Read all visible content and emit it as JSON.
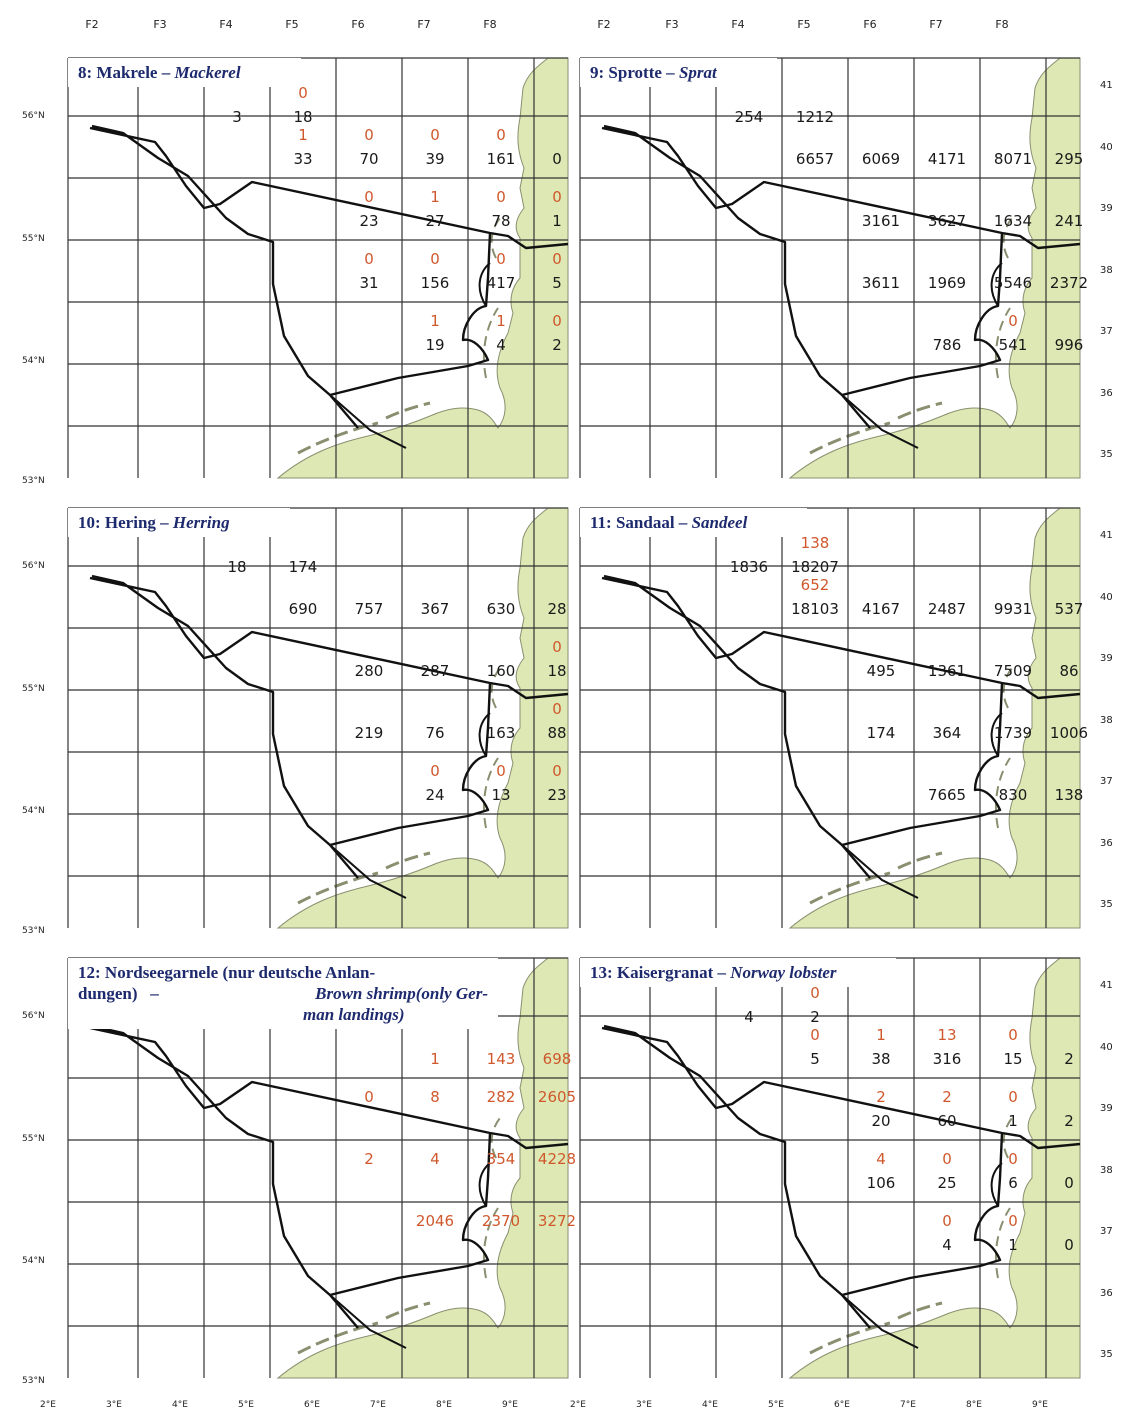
{
  "top_labels_left": [
    "F2",
    "F3",
    "F4",
    "F5",
    "F6",
    "F7",
    "F8"
  ],
  "top_labels_right": [
    "F2",
    "F3",
    "F4",
    "F5",
    "F6",
    "F7",
    "F8"
  ],
  "lat_labels": [
    "56°N",
    "55°N",
    "54°N",
    "53°N"
  ],
  "right_labels": [
    "41",
    "40",
    "39",
    "38",
    "37",
    "36",
    "35"
  ],
  "lon_labels_left": [
    "2°E",
    "3°E",
    "4°E",
    "5°E",
    "6°E",
    "7°E",
    "8°E",
    "9°E"
  ],
  "lon_labels_right": [
    "2°E",
    "3°E",
    "4°E",
    "5°E",
    "6°E",
    "7°E",
    "8°E",
    "9°E"
  ],
  "colors": {
    "land": "#dde8b4",
    "coast": "#8a8f70",
    "grid": "#333333",
    "boundary": "#111111",
    "title": "#1e2a6e",
    "black_value": "#1a1a1a",
    "red_value": "#d0582c"
  },
  "panels": [
    {
      "id": "8",
      "name_de": "8: Makrele – ",
      "name_en": "Mackerel",
      "values": [
        {
          "t": "0",
          "c": "red",
          "col": 3,
          "row": 1,
          "line": 0
        },
        {
          "t": "3",
          "c": "black",
          "col": 2,
          "row": 1,
          "line": 1
        },
        {
          "t": "18",
          "c": "black",
          "col": 3,
          "row": 1,
          "line": 1
        },
        {
          "t": "1",
          "c": "red",
          "col": 3,
          "row": 2,
          "line": 0
        },
        {
          "t": "0",
          "c": "red",
          "col": 4,
          "row": 2,
          "line": 0
        },
        {
          "t": "0",
          "c": "red",
          "col": 5,
          "row": 2,
          "line": 0
        },
        {
          "t": "0",
          "c": "red",
          "col": 6,
          "row": 2,
          "line": 0
        },
        {
          "t": "33",
          "c": "black",
          "col": 3,
          "row": 2,
          "line": 1
        },
        {
          "t": "70",
          "c": "black",
          "col": 4,
          "row": 2,
          "line": 1
        },
        {
          "t": "39",
          "c": "black",
          "col": 5,
          "row": 2,
          "line": 1
        },
        {
          "t": "161",
          "c": "black",
          "col": 6,
          "row": 2,
          "line": 1
        },
        {
          "t": "0",
          "c": "black",
          "col": 7,
          "row": 2,
          "line": 1
        },
        {
          "t": "0",
          "c": "red",
          "col": 4,
          "row": 3,
          "line": 0
        },
        {
          "t": "1",
          "c": "red",
          "col": 5,
          "row": 3,
          "line": 0
        },
        {
          "t": "0",
          "c": "red",
          "col": 6,
          "row": 3,
          "line": 0
        },
        {
          "t": "0",
          "c": "red",
          "col": 7,
          "row": 3,
          "line": 0
        },
        {
          "t": "23",
          "c": "black",
          "col": 4,
          "row": 3,
          "line": 1
        },
        {
          "t": "27",
          "c": "black",
          "col": 5,
          "row": 3,
          "line": 1
        },
        {
          "t": "78",
          "c": "black",
          "col": 6,
          "row": 3,
          "line": 1
        },
        {
          "t": "1",
          "c": "black",
          "col": 7,
          "row": 3,
          "line": 1
        },
        {
          "t": "0",
          "c": "red",
          "col": 4,
          "row": 4,
          "line": 0
        },
        {
          "t": "0",
          "c": "red",
          "col": 5,
          "row": 4,
          "line": 0
        },
        {
          "t": "0",
          "c": "red",
          "col": 6,
          "row": 4,
          "line": 0
        },
        {
          "t": "0",
          "c": "red",
          "col": 7,
          "row": 4,
          "line": 0
        },
        {
          "t": "31",
          "c": "black",
          "col": 4,
          "row": 4,
          "line": 1
        },
        {
          "t": "156",
          "c": "black",
          "col": 5,
          "row": 4,
          "line": 1
        },
        {
          "t": "417",
          "c": "black",
          "col": 6,
          "row": 4,
          "line": 1
        },
        {
          "t": "5",
          "c": "black",
          "col": 7,
          "row": 4,
          "line": 1
        },
        {
          "t": "1",
          "c": "red",
          "col": 5,
          "row": 5,
          "line": 0
        },
        {
          "t": "1",
          "c": "red",
          "col": 6,
          "row": 5,
          "line": 0
        },
        {
          "t": "0",
          "c": "red",
          "col": 7,
          "row": 5,
          "line": 0
        },
        {
          "t": "19",
          "c": "black",
          "col": 5,
          "row": 5,
          "line": 1
        },
        {
          "t": "4",
          "c": "black",
          "col": 6,
          "row": 5,
          "line": 1
        },
        {
          "t": "2",
          "c": "black",
          "col": 7,
          "row": 5,
          "line": 1
        }
      ]
    },
    {
      "id": "9",
      "name_de": "9: Sprotte – ",
      "name_en": "Sprat",
      "values": [
        {
          "t": "254",
          "c": "black",
          "col": 2,
          "row": 1,
          "line": 1
        },
        {
          "t": "1212",
          "c": "black",
          "col": 3,
          "row": 1,
          "line": 1
        },
        {
          "t": "6657",
          "c": "black",
          "col": 3,
          "row": 2,
          "line": 1
        },
        {
          "t": "6069",
          "c": "black",
          "col": 4,
          "row": 2,
          "line": 1
        },
        {
          "t": "4171",
          "c": "black",
          "col": 5,
          "row": 2,
          "line": 1
        },
        {
          "t": "8071",
          "c": "black",
          "col": 6,
          "row": 2,
          "line": 1
        },
        {
          "t": "295",
          "c": "black",
          "col": 7,
          "row": 2,
          "line": 1
        },
        {
          "t": "3161",
          "c": "black",
          "col": 4,
          "row": 3,
          "line": 1
        },
        {
          "t": "3627",
          "c": "black",
          "col": 5,
          "row": 3,
          "line": 1
        },
        {
          "t": "1634",
          "c": "black",
          "col": 6,
          "row": 3,
          "line": 1
        },
        {
          "t": "241",
          "c": "black",
          "col": 7,
          "row": 3,
          "line": 1
        },
        {
          "t": "3611",
          "c": "black",
          "col": 4,
          "row": 4,
          "line": 1
        },
        {
          "t": "1969",
          "c": "black",
          "col": 5,
          "row": 4,
          "line": 1
        },
        {
          "t": "5546",
          "c": "black",
          "col": 6,
          "row": 4,
          "line": 1
        },
        {
          "t": "2372",
          "c": "black",
          "col": 7,
          "row": 4,
          "line": 1
        },
        {
          "t": "0",
          "c": "red",
          "col": 6,
          "row": 5,
          "line": 0
        },
        {
          "t": "786",
          "c": "black",
          "col": 5,
          "row": 5,
          "line": 1
        },
        {
          "t": "541",
          "c": "black",
          "col": 6,
          "row": 5,
          "line": 1
        },
        {
          "t": "996",
          "c": "black",
          "col": 7,
          "row": 5,
          "line": 1
        }
      ]
    },
    {
      "id": "10",
      "name_de": "10: Hering – ",
      "name_en": "Herring",
      "values": [
        {
          "t": "18",
          "c": "black",
          "col": 2,
          "row": 1,
          "line": 1
        },
        {
          "t": "174",
          "c": "black",
          "col": 3,
          "row": 1,
          "line": 1
        },
        {
          "t": "690",
          "c": "black",
          "col": 3,
          "row": 2,
          "line": 1
        },
        {
          "t": "757",
          "c": "black",
          "col": 4,
          "row": 2,
          "line": 1
        },
        {
          "t": "367",
          "c": "black",
          "col": 5,
          "row": 2,
          "line": 1
        },
        {
          "t": "630",
          "c": "black",
          "col": 6,
          "row": 2,
          "line": 1
        },
        {
          "t": "28",
          "c": "black",
          "col": 7,
          "row": 2,
          "line": 1
        },
        {
          "t": "0",
          "c": "red",
          "col": 7,
          "row": 3,
          "line": 0
        },
        {
          "t": "280",
          "c": "black",
          "col": 4,
          "row": 3,
          "line": 1
        },
        {
          "t": "287",
          "c": "black",
          "col": 5,
          "row": 3,
          "line": 1
        },
        {
          "t": "160",
          "c": "black",
          "col": 6,
          "row": 3,
          "line": 1
        },
        {
          "t": "18",
          "c": "black",
          "col": 7,
          "row": 3,
          "line": 1
        },
        {
          "t": "0",
          "c": "red",
          "col": 7,
          "row": 4,
          "line": 0
        },
        {
          "t": "219",
          "c": "black",
          "col": 4,
          "row": 4,
          "line": 1
        },
        {
          "t": "76",
          "c": "black",
          "col": 5,
          "row": 4,
          "line": 1
        },
        {
          "t": "163",
          "c": "black",
          "col": 6,
          "row": 4,
          "line": 1
        },
        {
          "t": "88",
          "c": "black",
          "col": 7,
          "row": 4,
          "line": 1
        },
        {
          "t": "0",
          "c": "red",
          "col": 5,
          "row": 5,
          "line": 0
        },
        {
          "t": "0",
          "c": "red",
          "col": 6,
          "row": 5,
          "line": 0
        },
        {
          "t": "0",
          "c": "red",
          "col": 7,
          "row": 5,
          "line": 0
        },
        {
          "t": "24",
          "c": "black",
          "col": 5,
          "row": 5,
          "line": 1
        },
        {
          "t": "13",
          "c": "black",
          "col": 6,
          "row": 5,
          "line": 1
        },
        {
          "t": "23",
          "c": "black",
          "col": 7,
          "row": 5,
          "line": 1
        }
      ]
    },
    {
      "id": "11",
      "name_de": "11: Sandaal – ",
      "name_en": "Sandeel",
      "values": [
        {
          "t": "138",
          "c": "red",
          "col": 3,
          "row": 1,
          "line": 0
        },
        {
          "t": "1836",
          "c": "black",
          "col": 2,
          "row": 1,
          "line": 1
        },
        {
          "t": "18207",
          "c": "black",
          "col": 3,
          "row": 1,
          "line": 1
        },
        {
          "t": "652",
          "c": "red",
          "col": 3,
          "row": 2,
          "line": 0
        },
        {
          "t": "18103",
          "c": "black",
          "col": 3,
          "row": 2,
          "line": 1
        },
        {
          "t": "4167",
          "c": "black",
          "col": 4,
          "row": 2,
          "line": 1
        },
        {
          "t": "2487",
          "c": "black",
          "col": 5,
          "row": 2,
          "line": 1
        },
        {
          "t": "9931",
          "c": "black",
          "col": 6,
          "row": 2,
          "line": 1
        },
        {
          "t": "537",
          "c": "black",
          "col": 7,
          "row": 2,
          "line": 1
        },
        {
          "t": "495",
          "c": "black",
          "col": 4,
          "row": 3,
          "line": 1
        },
        {
          "t": "1361",
          "c": "black",
          "col": 5,
          "row": 3,
          "line": 1
        },
        {
          "t": "7509",
          "c": "black",
          "col": 6,
          "row": 3,
          "line": 1
        },
        {
          "t": "86",
          "c": "black",
          "col": 7,
          "row": 3,
          "line": 1
        },
        {
          "t": "174",
          "c": "black",
          "col": 4,
          "row": 4,
          "line": 1
        },
        {
          "t": "364",
          "c": "black",
          "col": 5,
          "row": 4,
          "line": 1
        },
        {
          "t": "1739",
          "c": "black",
          "col": 6,
          "row": 4,
          "line": 1
        },
        {
          "t": "1006",
          "c": "black",
          "col": 7,
          "row": 4,
          "line": 1
        },
        {
          "t": "7665",
          "c": "black",
          "col": 5,
          "row": 5,
          "line": 1
        },
        {
          "t": "830",
          "c": "black",
          "col": 6,
          "row": 5,
          "line": 1
        },
        {
          "t": "138",
          "c": "black",
          "col": 7,
          "row": 5,
          "line": 1
        }
      ]
    },
    {
      "id": "12",
      "name_de": "12: Nordseegarnele (nur deutsche Anlan- dungen) – ",
      "name_en": "Brown shrimp(only German landings)",
      "title_line1": "12: Nordseegarnele (nur deutsche Anlan-",
      "title_line2_de": "dungen)   –   ",
      "title_line2_en": "Brown shrimp(only Ger-",
      "title_line3_en": "man landings)",
      "values": [
        {
          "t": "1",
          "c": "red",
          "col": 5,
          "row": 2,
          "line": 1
        },
        {
          "t": "143",
          "c": "red",
          "col": 6,
          "row": 2,
          "line": 1
        },
        {
          "t": "698",
          "c": "red",
          "col": 7,
          "row": 2,
          "line": 1
        },
        {
          "t": "0",
          "c": "red",
          "col": 4,
          "row": 3,
          "line": 0
        },
        {
          "t": "8",
          "c": "red",
          "col": 5,
          "row": 3,
          "line": 0
        },
        {
          "t": "282",
          "c": "red",
          "col": 6,
          "row": 3,
          "line": 0
        },
        {
          "t": "2605",
          "c": "red",
          "col": 7,
          "row": 3,
          "line": 0
        },
        {
          "t": "2",
          "c": "red",
          "col": 4,
          "row": 4,
          "line": 0
        },
        {
          "t": "4",
          "c": "red",
          "col": 5,
          "row": 4,
          "line": 0
        },
        {
          "t": "354",
          "c": "red",
          "col": 6,
          "row": 4,
          "line": 0
        },
        {
          "t": "4228",
          "c": "red",
          "col": 7,
          "row": 4,
          "line": 0
        },
        {
          "t": "2046",
          "c": "red",
          "col": 5,
          "row": 5,
          "line": 0
        },
        {
          "t": "2370",
          "c": "red",
          "col": 6,
          "row": 5,
          "line": 0
        },
        {
          "t": "3272",
          "c": "red",
          "col": 7,
          "row": 5,
          "line": 0
        }
      ]
    },
    {
      "id": "13",
      "name_de": "13: Kaisergranat – ",
      "name_en": "Norway lobster",
      "values": [
        {
          "t": "0",
          "c": "red",
          "col": 3,
          "row": 1,
          "line": 0
        },
        {
          "t": "4",
          "c": "black",
          "col": 2,
          "row": 1,
          "line": 1
        },
        {
          "t": "2",
          "c": "black",
          "col": 3,
          "row": 1,
          "line": 1
        },
        {
          "t": "0",
          "c": "red",
          "col": 3,
          "row": 2,
          "line": 0
        },
        {
          "t": "1",
          "c": "red",
          "col": 4,
          "row": 2,
          "line": 0
        },
        {
          "t": "13",
          "c": "red",
          "col": 5,
          "row": 2,
          "line": 0
        },
        {
          "t": "0",
          "c": "red",
          "col": 6,
          "row": 2,
          "line": 0
        },
        {
          "t": "5",
          "c": "black",
          "col": 3,
          "row": 2,
          "line": 1
        },
        {
          "t": "38",
          "c": "black",
          "col": 4,
          "row": 2,
          "line": 1
        },
        {
          "t": "316",
          "c": "black",
          "col": 5,
          "row": 2,
          "line": 1
        },
        {
          "t": "15",
          "c": "black",
          "col": 6,
          "row": 2,
          "line": 1
        },
        {
          "t": "2",
          "c": "black",
          "col": 7,
          "row": 2,
          "line": 1
        },
        {
          "t": "2",
          "c": "red",
          "col": 4,
          "row": 3,
          "line": 0
        },
        {
          "t": "2",
          "c": "red",
          "col": 5,
          "row": 3,
          "line": 0
        },
        {
          "t": "0",
          "c": "red",
          "col": 6,
          "row": 3,
          "line": 0
        },
        {
          "t": "20",
          "c": "black",
          "col": 4,
          "row": 3,
          "line": 1
        },
        {
          "t": "60",
          "c": "black",
          "col": 5,
          "row": 3,
          "line": 1
        },
        {
          "t": "1",
          "c": "black",
          "col": 6,
          "row": 3,
          "line": 1
        },
        {
          "t": "2",
          "c": "black",
          "col": 7,
          "row": 3,
          "line": 1
        },
        {
          "t": "4",
          "c": "red",
          "col": 4,
          "row": 4,
          "line": 0
        },
        {
          "t": "0",
          "c": "red",
          "col": 5,
          "row": 4,
          "line": 0
        },
        {
          "t": "0",
          "c": "red",
          "col": 6,
          "row": 4,
          "line": 0
        },
        {
          "t": "106",
          "c": "black",
          "col": 4,
          "row": 4,
          "line": 1
        },
        {
          "t": "25",
          "c": "black",
          "col": 5,
          "row": 4,
          "line": 1
        },
        {
          "t": "6",
          "c": "black",
          "col": 6,
          "row": 4,
          "line": 1
        },
        {
          "t": "0",
          "c": "black",
          "col": 7,
          "row": 4,
          "line": 1
        },
        {
          "t": "0",
          "c": "red",
          "col": 5,
          "row": 5,
          "line": 0
        },
        {
          "t": "0",
          "c": "red",
          "col": 6,
          "row": 5,
          "line": 0
        },
        {
          "t": "4",
          "c": "black",
          "col": 5,
          "row": 5,
          "line": 1
        },
        {
          "t": "1",
          "c": "black",
          "col": 6,
          "row": 5,
          "line": 1
        },
        {
          "t": "0",
          "c": "black",
          "col": 7,
          "row": 5,
          "line": 1
        }
      ]
    }
  ]
}
